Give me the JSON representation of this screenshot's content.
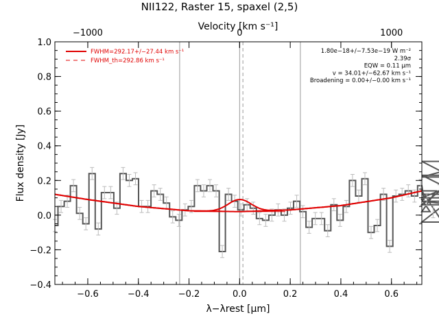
{
  "chart_data": {
    "type": "line",
    "title": "NII122, Raster 15, spaxel (2,5)",
    "xlabel": "λ−λrest [μm]",
    "ylabel": "Flux density [Jy]",
    "top_xlabel": "Velocity [km s⁻¹]",
    "xlim": [
      -0.73,
      0.72
    ],
    "ylim": [
      -0.4,
      1.0
    ],
    "x_ticks": [
      -0.6,
      -0.4,
      -0.2,
      0.0,
      0.2,
      0.4,
      0.6
    ],
    "x_tick_labels": [
      "−0.6",
      "−0.4",
      "−0.2",
      "0.0",
      "0.2",
      "0.4",
      "0.6"
    ],
    "y_ticks": [
      -0.4,
      -0.2,
      0.0,
      0.2,
      0.4,
      0.6,
      0.8,
      1.0
    ],
    "y_tick_labels": [
      "−0.4",
      "−0.2",
      "0.0",
      "0.2",
      "0.4",
      "0.6",
      "0.8",
      "1.0"
    ],
    "top_ticks": [
      -1000,
      0,
      1000
    ],
    "top_tick_labels": [
      "−1000",
      "0",
      "1000"
    ],
    "top_tick_pos": [
      -0.6,
      0.0,
      0.6
    ],
    "vlines_solid": [
      -0.237,
      0.0,
      0.24
    ],
    "vline_dashed": 0.013,
    "annotations": [
      "1.80e−18+/−7.53e−19 W m⁻²",
      "2.39σ",
      "EQW = 0.11 μm",
      "v = 34.01+/−62.67 km s⁻¹",
      "Broadening = 0.00+/−0.00 km s⁻¹"
    ],
    "legend_position": "top-left",
    "series": [
      {
        "name": "FWHM=292.17+/−27.44 km s⁻¹",
        "color": "#e00000",
        "style": "solid"
      },
      {
        "name": "FWHM_th=292.86 km s⁻¹",
        "color": "#e00000",
        "style": "dashed"
      }
    ],
    "spectrum": {
      "color": "#555555",
      "x_start": -0.73,
      "x_step": 0.0245,
      "values": [
        -0.06,
        0.05,
        0.08,
        0.17,
        0.01,
        -0.05,
        0.24,
        -0.08,
        0.13,
        0.13,
        0.04,
        0.24,
        0.2,
        0.21,
        0.05,
        0.05,
        0.14,
        0.12,
        0.07,
        -0.01,
        -0.03,
        0.03,
        0.05,
        0.17,
        0.14,
        0.17,
        0.14,
        -0.21,
        0.12,
        0.08,
        0.03,
        0.06,
        0.04,
        -0.02,
        -0.03,
        0.0,
        0.03,
        0.0,
        0.04,
        0.08,
        0.02,
        -0.07,
        -0.02,
        -0.02,
        -0.09,
        0.06,
        -0.03,
        0.05,
        0.2,
        0.11,
        0.21,
        -0.1,
        -0.06,
        0.12,
        -0.18,
        0.11,
        0.12,
        0.14,
        0.11,
        0.17,
        0.09,
        0.02,
        0.14,
        -0.04,
        0.08,
        0.06,
        0.23,
        0.1,
        0.22,
        0.31,
        0.12
      ]
    },
    "fit_model": {
      "baseline_x": [
        -0.73,
        -0.6,
        -0.4,
        -0.2,
        0.0,
        0.2,
        0.4,
        0.6,
        0.72
      ],
      "baseline_y": [
        0.12,
        0.09,
        0.05,
        0.025,
        0.02,
        0.03,
        0.055,
        0.1,
        0.14
      ],
      "line_center": 0.0,
      "line_peak": 0.07,
      "line_sigma": 0.045
    }
  }
}
